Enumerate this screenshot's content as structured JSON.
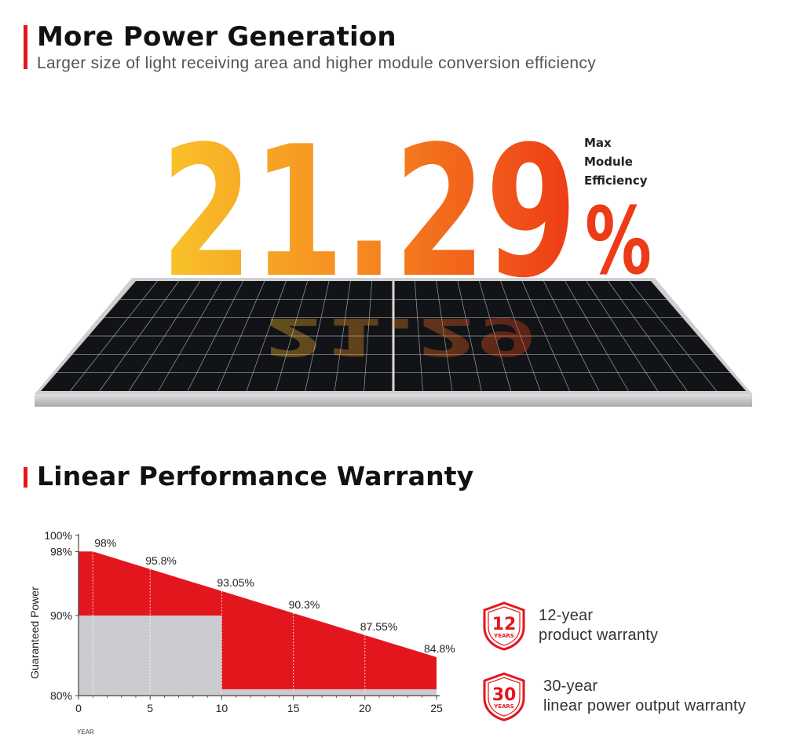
{
  "header": {
    "title": "More Power Generation",
    "subtitle": "Larger size of light receiving area and higher module conversion efficiency"
  },
  "efficiency": {
    "value": "21.29",
    "unit": "%",
    "label_lines": [
      "Max",
      "Module",
      "Efficiency"
    ],
    "gradient_colors": [
      "#f8c42a",
      "#f5871f",
      "#ee3a17"
    ]
  },
  "warranty_section": {
    "title": "Linear Performance Warranty"
  },
  "badges": [
    {
      "number": "12",
      "unit": "YEARS",
      "line1": "12-year",
      "line2": "product warranty",
      "icon": "shield-badge-icon",
      "color": "#e3161e"
    },
    {
      "number": "30",
      "unit": "YEARS",
      "line1": "30-year",
      "line2": "linear power output warranty",
      "icon": "shield-badge-icon",
      "color": "#e3161e"
    }
  ],
  "chart_data": {
    "type": "area",
    "title": "",
    "xlabel": "YEAR",
    "ylabel": "Guaranteed Power",
    "xlim": [
      0,
      25
    ],
    "ylim": [
      80,
      100
    ],
    "x_ticks": [
      "0",
      "5",
      "10",
      "15",
      "20",
      "25"
    ],
    "y_ticks": [
      "80%",
      "90%",
      "98%",
      "100%"
    ],
    "series": [
      {
        "name": "",
        "color": "#e3161e",
        "points": [
          {
            "x": 0,
            "y": 98
          },
          {
            "x": 1,
            "y": 98
          },
          {
            "x": 5,
            "y": 95.8
          },
          {
            "x": 10,
            "y": 93.05
          },
          {
            "x": 15,
            "y": 90.3
          },
          {
            "x": 20,
            "y": 87.55
          },
          {
            "x": 25,
            "y": 84.8
          }
        ],
        "labels": [
          {
            "x": 1,
            "y": 98,
            "text": "98%"
          },
          {
            "x": 5,
            "y": 95.8,
            "text": "95.8%"
          },
          {
            "x": 10,
            "y": 93.05,
            "text": "93.05%"
          },
          {
            "x": 15,
            "y": 90.3,
            "text": "90.3%"
          },
          {
            "x": 20,
            "y": 87.55,
            "text": "87.55%"
          },
          {
            "x": 25,
            "y": 84.8,
            "text": "84.8%"
          }
        ]
      },
      {
        "name": "",
        "color": "#ccccd0",
        "points": [
          {
            "x": 0,
            "y": 90
          },
          {
            "x": 10,
            "y": 90
          },
          {
            "x": 10,
            "y": 80.8
          },
          {
            "x": 25,
            "y": 80.8
          }
        ]
      }
    ]
  }
}
